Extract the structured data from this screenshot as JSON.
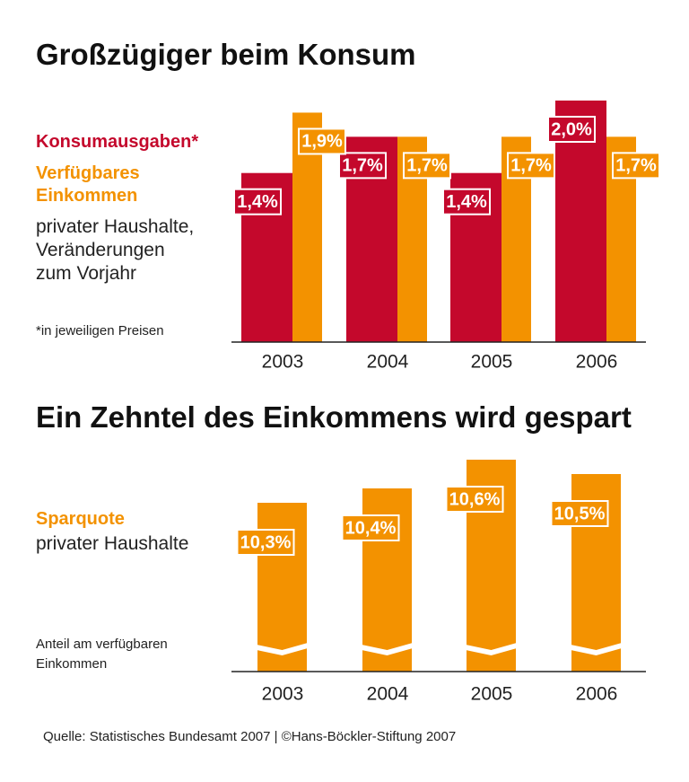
{
  "chart_data": [
    {
      "type": "bar",
      "title": "Großzügiger beim Konsum",
      "subtitle": [
        "privater Haushalte,",
        "Veränderungen",
        "zum Vorjahr"
      ],
      "note": "*in jeweiligen Preisen",
      "categories": [
        "2003",
        "2004",
        "2005",
        "2006"
      ],
      "series": [
        {
          "name": "Konsumausgaben*",
          "color": "#c4082c",
          "values": [
            1.4,
            1.7,
            1.4,
            2.0
          ],
          "value_labels": [
            "1,4%",
            "1,7%",
            "1,4%",
            "2,0%"
          ]
        },
        {
          "name": "Verfügbares Einkommen",
          "color": "#f39200",
          "values": [
            1.9,
            1.7,
            1.7,
            1.7
          ],
          "value_labels": [
            "1,9%",
            "1,7%",
            "1,7%",
            "1,7%"
          ]
        }
      ]
    },
    {
      "type": "bar",
      "title": "Ein Zehntel des Einkommens wird gespart",
      "subtitle": [
        "privater Haushalte"
      ],
      "note": "Anteil am verfügbaren Einkommen",
      "broken_axis": true,
      "categories": [
        "2003",
        "2004",
        "2005",
        "2006"
      ],
      "series": [
        {
          "name": "Sparquote",
          "color": "#f39200",
          "values": [
            10.3,
            10.4,
            10.6,
            10.5
          ],
          "value_labels": [
            "10,3%",
            "10,4%",
            "10,6%",
            "10,5%"
          ]
        }
      ]
    }
  ],
  "source": "Quelle: Statistisches Bundesamt 2007 | ©Hans-Böckler-Stiftung 2007"
}
